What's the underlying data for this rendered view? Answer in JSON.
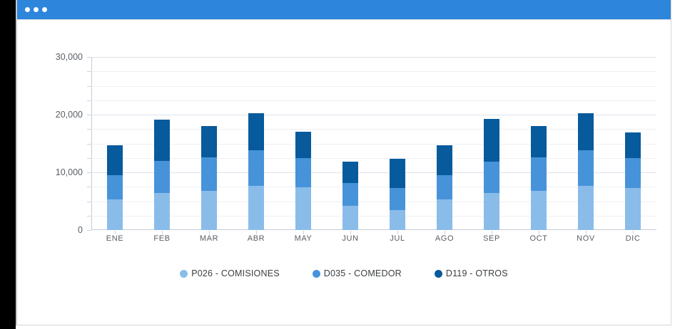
{
  "window": {
    "titlebar_color": "#2e86dc",
    "dot_count": 3
  },
  "chart_data": {
    "type": "bar",
    "stacked": true,
    "title": "",
    "xlabel": "",
    "ylabel": "",
    "categories": [
      "ENE",
      "FEB",
      "MAR",
      "ABR",
      "MAY",
      "JUN",
      "JUL",
      "AGO",
      "SEP",
      "OCT",
      "NOV",
      "DIC"
    ],
    "series": [
      {
        "name": "P026 - COMISIONES",
        "color": "#8abcea",
        "values": [
          5250,
          6400,
          6800,
          7650,
          7350,
          4150,
          3500,
          5250,
          6400,
          6800,
          7650,
          7250
        ]
      },
      {
        "name": "D035 - COMEDOR",
        "color": "#4793d9",
        "values": [
          4200,
          5550,
          5750,
          6150,
          5150,
          3950,
          3800,
          4200,
          5400,
          5750,
          6150,
          5200
        ]
      },
      {
        "name": "D119 - OTROS",
        "color": "#075a9b",
        "values": [
          5250,
          7200,
          5450,
          6500,
          4500,
          3800,
          5100,
          5250,
          7450,
          5450,
          6500,
          4500
        ]
      }
    ],
    "totals": [
      14700,
      19150,
      18000,
      20300,
      17000,
      11900,
      12400,
      14700,
      19250,
      18000,
      20300,
      16950
    ],
    "y_axis": {
      "min": 0,
      "max": 30000,
      "minor_step": 2500,
      "major_step": 10000,
      "ticks": [
        {
          "label": "30,000",
          "value": 30000
        },
        {
          "label": "20,000",
          "value": 20000
        },
        {
          "label": "10,000",
          "value": 10000
        },
        {
          "label": "0",
          "value": 0
        }
      ]
    },
    "grid": true,
    "legend_position": "bottom"
  }
}
